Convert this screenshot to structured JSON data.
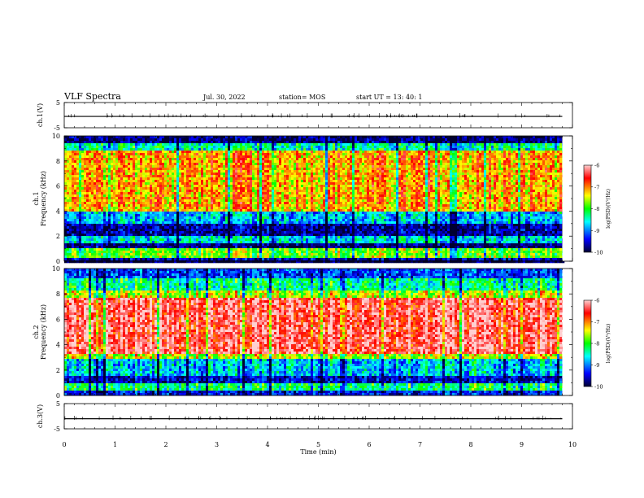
{
  "header": {
    "title": "VLF Spectra",
    "date": "Jul. 30, 2022",
    "station": "station= MOS",
    "start": "start UT =  13: 40: 1"
  },
  "chart_data": [
    {
      "type": "line",
      "ylabel": "ch.1(V)",
      "ylim": [
        -5,
        5
      ],
      "y_ticks": [
        "5",
        "-5"
      ],
      "x": [
        0,
        9.8
      ],
      "values": [
        -0.5,
        -0.5
      ]
    },
    {
      "type": "heatmap",
      "ylabel": "ch.1\nFrequency (kHz)",
      "ylim": [
        0,
        10
      ],
      "y_ticks": [
        "10",
        "8",
        "6",
        "4",
        "2",
        "0"
      ],
      "xlim": [
        0,
        10
      ],
      "data_extent_min": 9.8,
      "band_levels": [
        {
          "f": [
            9.5,
            10.0
          ],
          "level": 0.05
        },
        {
          "f": [
            8.8,
            9.5
          ],
          "level": 0.4
        },
        {
          "f": [
            4.0,
            8.8
          ],
          "level": 0.72
        },
        {
          "f": [
            3.0,
            4.0
          ],
          "level": 0.3
        },
        {
          "f": [
            2.0,
            3.0
          ],
          "level": 0.08
        },
        {
          "f": [
            1.5,
            2.0
          ],
          "level": 0.35
        },
        {
          "f": [
            1.0,
            1.5
          ],
          "level": 0.05
        },
        {
          "f": [
            0.3,
            1.0
          ],
          "level": 0.55
        },
        {
          "f": [
            0.0,
            0.3
          ],
          "level": 0.1
        }
      ],
      "colorbar": {
        "label": "log(PSD)(V²/Hz)",
        "min": -10,
        "max": -6,
        "ticks": [
          "-6",
          "-7",
          "-8",
          "-9",
          "-10"
        ]
      }
    },
    {
      "type": "heatmap",
      "ylabel": "ch.2\nFrequency (kHz)",
      "ylim": [
        0,
        10
      ],
      "y_ticks": [
        "10",
        "8",
        "6",
        "4",
        "2",
        "0"
      ],
      "xlim": [
        0,
        10
      ],
      "data_extent_min": 9.8,
      "band_levels": [
        {
          "f": [
            9.3,
            10.0
          ],
          "level": 0.2
        },
        {
          "f": [
            8.3,
            9.3
          ],
          "level": 0.42
        },
        {
          "f": [
            7.6,
            8.3
          ],
          "level": 0.62
        },
        {
          "f": [
            3.3,
            7.6
          ],
          "level": 0.92
        },
        {
          "f": [
            2.8,
            3.3
          ],
          "level": 0.62
        },
        {
          "f": [
            1.5,
            2.8
          ],
          "level": 0.32
        },
        {
          "f": [
            1.0,
            1.5
          ],
          "level": 0.12
        },
        {
          "f": [
            0.3,
            1.0
          ],
          "level": 0.45
        },
        {
          "f": [
            0.0,
            0.3
          ],
          "level": 0.15
        }
      ],
      "colorbar": {
        "label": "log(PSD)(V²/Hz)",
        "min": -10,
        "max": -6,
        "ticks": [
          "-6",
          "-7",
          "-8",
          "-9",
          "-10"
        ]
      }
    },
    {
      "type": "line",
      "ylabel": "ch.3(V)",
      "ylim": [
        -5,
        5
      ],
      "y_ticks": [
        "5",
        "-5"
      ],
      "x": [
        0,
        9.8
      ],
      "values": [
        -1.0,
        -1.0
      ]
    }
  ],
  "x_axis": {
    "label": "Time (min)",
    "ticks": [
      "0",
      "1",
      "2",
      "3",
      "4",
      "5",
      "6",
      "7",
      "8",
      "9",
      "10"
    ]
  },
  "colormap": [
    "#000030",
    "#0000ff",
    "#00ffff",
    "#00ff00",
    "#ffff00",
    "#ff0000",
    "#ff8a8a"
  ]
}
